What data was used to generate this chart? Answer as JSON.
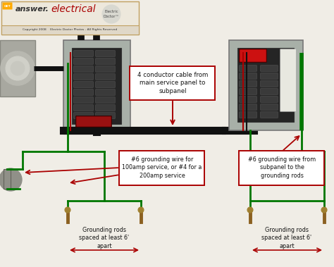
{
  "bg_color": "#f0ede6",
  "copyright_text": "Copyright 2008    Electric Doctor Photos - All Rights Reserved",
  "label1": "4 conductor cable from\nmain service panel to\nsubpanel",
  "label2": "#6 grounding wire for\n100amp service, or #4 for a\n200amp service",
  "label3": "#6 grounding wire from\nsubpanel to the\ngrounding rods",
  "label4": "Grounding rods\nspaced at least 6'\napart",
  "label5": "Grounding rods\nspaced at least 6'\napart",
  "red": "#aa0000",
  "green": "#007700",
  "black": "#111111",
  "brown": "#8B6020",
  "panel_outer": "#a8b0a8",
  "panel_inner": "#252525",
  "breaker_slot": "#3a3a3a",
  "box_fill": "#ffffff",
  "header_bg": "#ede8dc",
  "header_border": "#c0a060",
  "meter_color": "#b0ada8",
  "clamp_color": "#909088"
}
